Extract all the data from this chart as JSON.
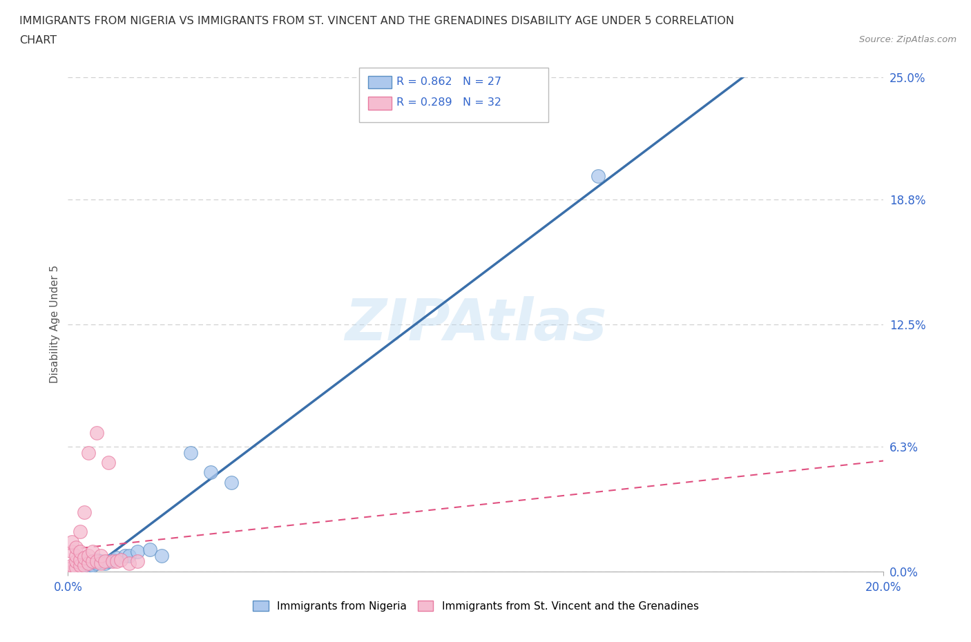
{
  "title_line1": "IMMIGRANTS FROM NIGERIA VS IMMIGRANTS FROM ST. VINCENT AND THE GRENADINES DISABILITY AGE UNDER 5 CORRELATION",
  "title_line2": "CHART",
  "source": "Source: ZipAtlas.com",
  "ylabel": "Disability Age Under 5",
  "xmin": 0.0,
  "xmax": 0.2,
  "ymin": 0.0,
  "ymax": 0.25,
  "yticks": [
    0.0,
    0.063,
    0.125,
    0.188,
    0.25
  ],
  "ytick_labels": [
    "0.0%",
    "6.3%",
    "12.5%",
    "18.8%",
    "25.0%"
  ],
  "xticks": [
    0.0,
    0.2
  ],
  "xtick_labels": [
    "0.0%",
    "20.0%"
  ],
  "nigeria_color": "#adc8ed",
  "nigeria_edge": "#5a8fc4",
  "nigeria_line_color": "#3a6faa",
  "svg_color": "#f5bcd0",
  "svg_edge": "#e87aa0",
  "svg_line_color": "#e05080",
  "nigeria_R": 0.862,
  "nigeria_N": 27,
  "svg_R": 0.289,
  "svg_N": 32,
  "legend_text_color": "#3366cc",
  "nigeria_x": [
    0.001,
    0.002,
    0.002,
    0.003,
    0.003,
    0.004,
    0.004,
    0.005,
    0.005,
    0.006,
    0.006,
    0.007,
    0.007,
    0.008,
    0.009,
    0.01,
    0.011,
    0.012,
    0.014,
    0.015,
    0.017,
    0.02,
    0.023,
    0.03,
    0.035,
    0.04,
    0.13
  ],
  "nigeria_y": [
    0.0,
    0.001,
    0.002,
    0.001,
    0.003,
    0.002,
    0.004,
    0.002,
    0.003,
    0.003,
    0.005,
    0.004,
    0.006,
    0.005,
    0.004,
    0.005,
    0.006,
    0.007,
    0.008,
    0.008,
    0.01,
    0.011,
    0.008,
    0.06,
    0.05,
    0.045,
    0.2
  ],
  "svg_x": [
    0.001,
    0.001,
    0.001,
    0.001,
    0.001,
    0.002,
    0.002,
    0.002,
    0.002,
    0.003,
    0.003,
    0.003,
    0.003,
    0.004,
    0.004,
    0.004,
    0.005,
    0.005,
    0.005,
    0.006,
    0.006,
    0.007,
    0.007,
    0.008,
    0.008,
    0.009,
    0.01,
    0.011,
    0.012,
    0.013,
    0.015,
    0.017
  ],
  "svg_y": [
    0.0,
    0.002,
    0.003,
    0.01,
    0.015,
    0.002,
    0.005,
    0.008,
    0.012,
    0.003,
    0.006,
    0.01,
    0.02,
    0.003,
    0.007,
    0.03,
    0.004,
    0.008,
    0.06,
    0.005,
    0.01,
    0.005,
    0.07,
    0.004,
    0.008,
    0.005,
    0.055,
    0.005,
    0.005,
    0.006,
    0.004,
    0.005
  ],
  "bg_color": "#ffffff",
  "grid_color": "#cccccc"
}
